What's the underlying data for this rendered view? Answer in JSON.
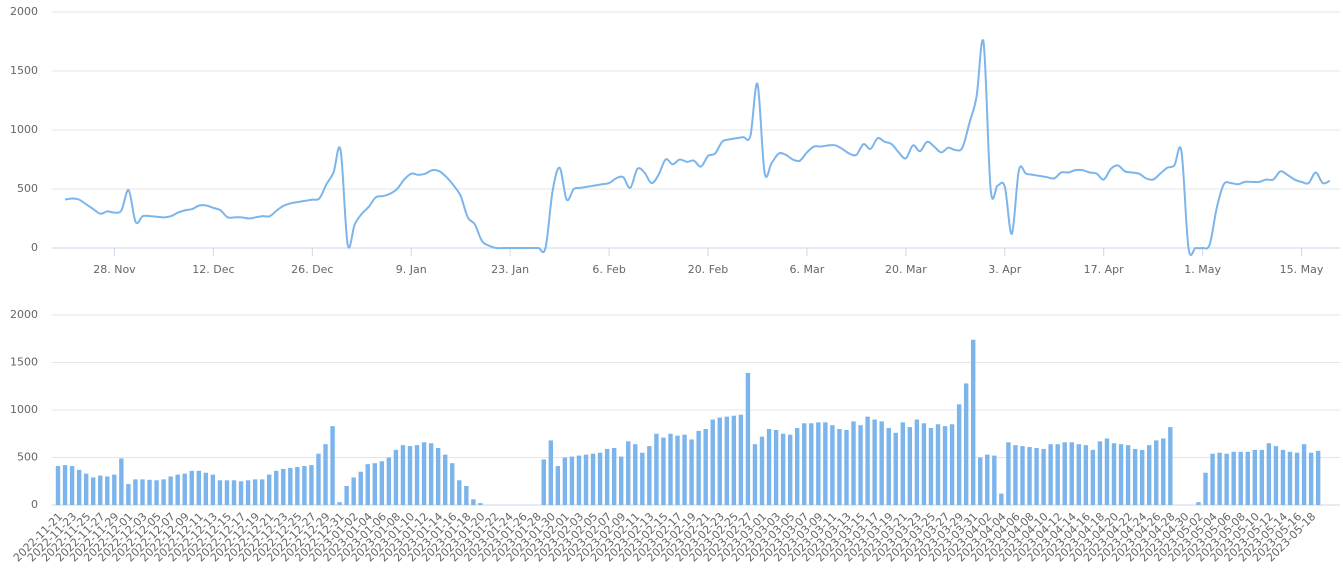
{
  "chart_data": [
    {
      "type": "line",
      "color": "#7cb5ec",
      "grid": true,
      "ylim": [
        0,
        2000
      ],
      "yticks": [
        0,
        500,
        1000,
        1500,
        2000
      ],
      "categories": [
        null,
        null,
        null,
        null,
        null,
        null,
        null,
        "28. Nov",
        null,
        null,
        null,
        null,
        null,
        null,
        null,
        null,
        null,
        null,
        null,
        null,
        null,
        "12. Dec",
        null,
        null,
        null,
        null,
        null,
        null,
        null,
        null,
        null,
        null,
        null,
        null,
        null,
        "26. Dec",
        null,
        null,
        null,
        null,
        null,
        null,
        null,
        null,
        null,
        null,
        null,
        null,
        null,
        "9. Jan",
        null,
        null,
        null,
        null,
        null,
        null,
        null,
        null,
        null,
        null,
        null,
        null,
        null,
        "23. Jan",
        null,
        null,
        null,
        null,
        null,
        null,
        null,
        null,
        null,
        null,
        null,
        null,
        null,
        "6. Feb",
        null,
        null,
        null,
        null,
        null,
        null,
        null,
        null,
        null,
        null,
        null,
        null,
        null,
        "20. Feb",
        null,
        null,
        null,
        null,
        null,
        null,
        null,
        null,
        null,
        null,
        null,
        null,
        null,
        "6. Mar",
        null,
        null,
        null,
        null,
        null,
        null,
        null,
        null,
        null,
        null,
        null,
        null,
        null,
        "20. Mar",
        null,
        null,
        null,
        null,
        null,
        null,
        null,
        null,
        null,
        null,
        null,
        null,
        null,
        "3. Apr",
        null,
        null,
        null,
        null,
        null,
        null,
        null,
        null,
        null,
        null,
        null,
        null,
        null,
        "17. Apr",
        null,
        null,
        null,
        null,
        null,
        null,
        null,
        null,
        null,
        null,
        null,
        null,
        null,
        "1. May",
        null,
        null,
        null,
        null,
        null,
        null,
        null,
        null,
        null,
        null,
        null,
        null,
        null,
        "15. May",
        null,
        null,
        null,
        null
      ],
      "values": [
        410,
        420,
        410,
        370,
        330,
        290,
        310,
        300,
        320,
        490,
        220,
        270,
        270,
        265,
        260,
        270,
        300,
        320,
        330,
        360,
        360,
        340,
        320,
        260,
        260,
        260,
        250,
        260,
        270,
        270,
        320,
        360,
        380,
        390,
        400,
        410,
        420,
        540,
        640,
        830,
        30,
        200,
        290,
        350,
        430,
        440,
        460,
        500,
        580,
        630,
        620,
        630,
        660,
        650,
        600,
        530,
        440,
        260,
        200,
        60,
        20,
        0,
        0,
        0,
        0,
        0,
        0,
        0,
        0,
        480,
        680,
        410,
        500,
        510,
        520,
        530,
        540,
        550,
        590,
        600,
        510,
        670,
        640,
        550,
        620,
        750,
        710,
        750,
        730,
        740,
        690,
        780,
        800,
        900,
        920,
        930,
        940,
        950,
        1390,
        640,
        720,
        800,
        790,
        750,
        740,
        810,
        860,
        860,
        870,
        870,
        840,
        800,
        790,
        880,
        840,
        930,
        900,
        880,
        810,
        760,
        870,
        820,
        900,
        860,
        810,
        850,
        830,
        850,
        1060,
        1280,
        1740,
        500,
        530,
        520,
        120,
        660,
        630,
        620,
        610,
        600,
        590,
        640,
        640,
        660,
        660,
        640,
        630,
        580,
        670,
        700,
        650,
        640,
        630,
        590,
        580,
        630,
        680,
        700,
        820,
        0,
        0,
        0,
        30,
        340,
        540,
        550,
        540,
        560,
        560,
        560,
        580,
        580,
        650,
        620,
        580,
        560,
        550,
        640,
        550,
        570
      ]
    },
    {
      "type": "bar",
      "color": "#7cb5ec",
      "grid": true,
      "ylim": [
        0,
        2000
      ],
      "yticks": [
        0,
        500,
        1000,
        1500,
        2000
      ],
      "categories": [
        "2022-11-21",
        null,
        "2022-11-23",
        null,
        "2022-11-25",
        null,
        "2022-11-27",
        null,
        "2022-11-29",
        null,
        "2022-12-01",
        null,
        "2022-12-03",
        null,
        "2022-12-05",
        null,
        "2022-12-07",
        null,
        "2022-12-09",
        null,
        "2022-12-11",
        null,
        "2022-12-13",
        null,
        "2022-12-15",
        null,
        "2022-12-17",
        null,
        "2022-12-19",
        null,
        "2022-12-21",
        null,
        "2022-12-23",
        null,
        "2022-12-25",
        null,
        "2022-12-27",
        null,
        "2022-12-29",
        null,
        "2022-12-31",
        null,
        "2023-01-02",
        null,
        "2023-01-04",
        null,
        "2023-01-06",
        null,
        "2023-01-08",
        null,
        "2023-01-10",
        null,
        "2023-01-12",
        null,
        "2023-01-14",
        null,
        "2023-01-16",
        null,
        "2023-01-18",
        null,
        "2023-01-20",
        null,
        "2023-01-22",
        null,
        "2023-01-24",
        null,
        "2023-01-26",
        null,
        "2023-01-28",
        null,
        "2023-01-30",
        null,
        "2023-02-01",
        null,
        "2023-02-03",
        null,
        "2023-02-05",
        null,
        "2023-02-07",
        null,
        "2023-02-09",
        null,
        "2023-02-11",
        null,
        "2023-02-13",
        null,
        "2023-02-15",
        null,
        "2023-02-17",
        null,
        "2023-02-19",
        null,
        "2023-02-21",
        null,
        "2023-02-23",
        null,
        "2023-02-25",
        null,
        "2023-02-27",
        null,
        "2023-03-01",
        null,
        "2023-03-03",
        null,
        "2023-03-05",
        null,
        "2023-03-07",
        null,
        "2023-03-09",
        null,
        "2023-03-11",
        null,
        "2023-03-13",
        null,
        "2023-03-15",
        null,
        "2023-03-17",
        null,
        "2023-03-19",
        null,
        "2023-03-21",
        null,
        "2023-03-23",
        null,
        "2023-03-25",
        null,
        "2023-03-27",
        null,
        "2023-03-29",
        null,
        "2023-03-31",
        null,
        "2023-04-02",
        null,
        "2023-04-04",
        null,
        "2023-04-06",
        null,
        "2023-04-08",
        null,
        "2023-04-10",
        null,
        "2023-04-12",
        null,
        "2023-04-14",
        null,
        "2023-04-16",
        null,
        "2023-04-18",
        null,
        "2023-04-20",
        null,
        "2023-04-22",
        null,
        "2023-04-24",
        null,
        "2023-04-26",
        null,
        "2023-04-28",
        null,
        "2023-04-30",
        null,
        "2023-05-02",
        null,
        "2023-05-04",
        null,
        "2023-05-06",
        null,
        "2023-05-08",
        null,
        "2023-05-10",
        null,
        "2023-05-12",
        null,
        "2023-05-14",
        null,
        "2023-05-16",
        null,
        "2023-05-18",
        null
      ],
      "values": [
        410,
        420,
        410,
        370,
        330,
        290,
        310,
        300,
        320,
        490,
        220,
        270,
        270,
        265,
        260,
        270,
        300,
        320,
        330,
        360,
        360,
        340,
        320,
        260,
        260,
        260,
        250,
        260,
        270,
        270,
        320,
        360,
        380,
        390,
        400,
        410,
        420,
        540,
        640,
        830,
        30,
        200,
        290,
        350,
        430,
        440,
        460,
        500,
        580,
        630,
        620,
        630,
        660,
        650,
        600,
        530,
        440,
        260,
        200,
        60,
        20,
        0,
        0,
        0,
        0,
        0,
        0,
        0,
        0,
        480,
        680,
        410,
        500,
        510,
        520,
        530,
        540,
        550,
        590,
        600,
        510,
        670,
        640,
        550,
        620,
        750,
        710,
        750,
        730,
        740,
        690,
        780,
        800,
        900,
        920,
        930,
        940,
        950,
        1390,
        640,
        720,
        800,
        790,
        750,
        740,
        810,
        860,
        860,
        870,
        870,
        840,
        800,
        790,
        880,
        840,
        930,
        900,
        880,
        810,
        760,
        870,
        820,
        900,
        860,
        810,
        850,
        830,
        850,
        1060,
        1280,
        1740,
        500,
        530,
        520,
        120,
        660,
        630,
        620,
        610,
        600,
        590,
        640,
        640,
        660,
        660,
        640,
        630,
        580,
        670,
        700,
        650,
        640,
        630,
        590,
        580,
        630,
        680,
        700,
        820,
        0,
        0,
        0,
        30,
        340,
        540,
        550,
        540,
        560,
        560,
        560,
        580,
        580,
        650,
        620,
        580,
        560,
        550,
        640,
        550,
        570
      ]
    }
  ]
}
